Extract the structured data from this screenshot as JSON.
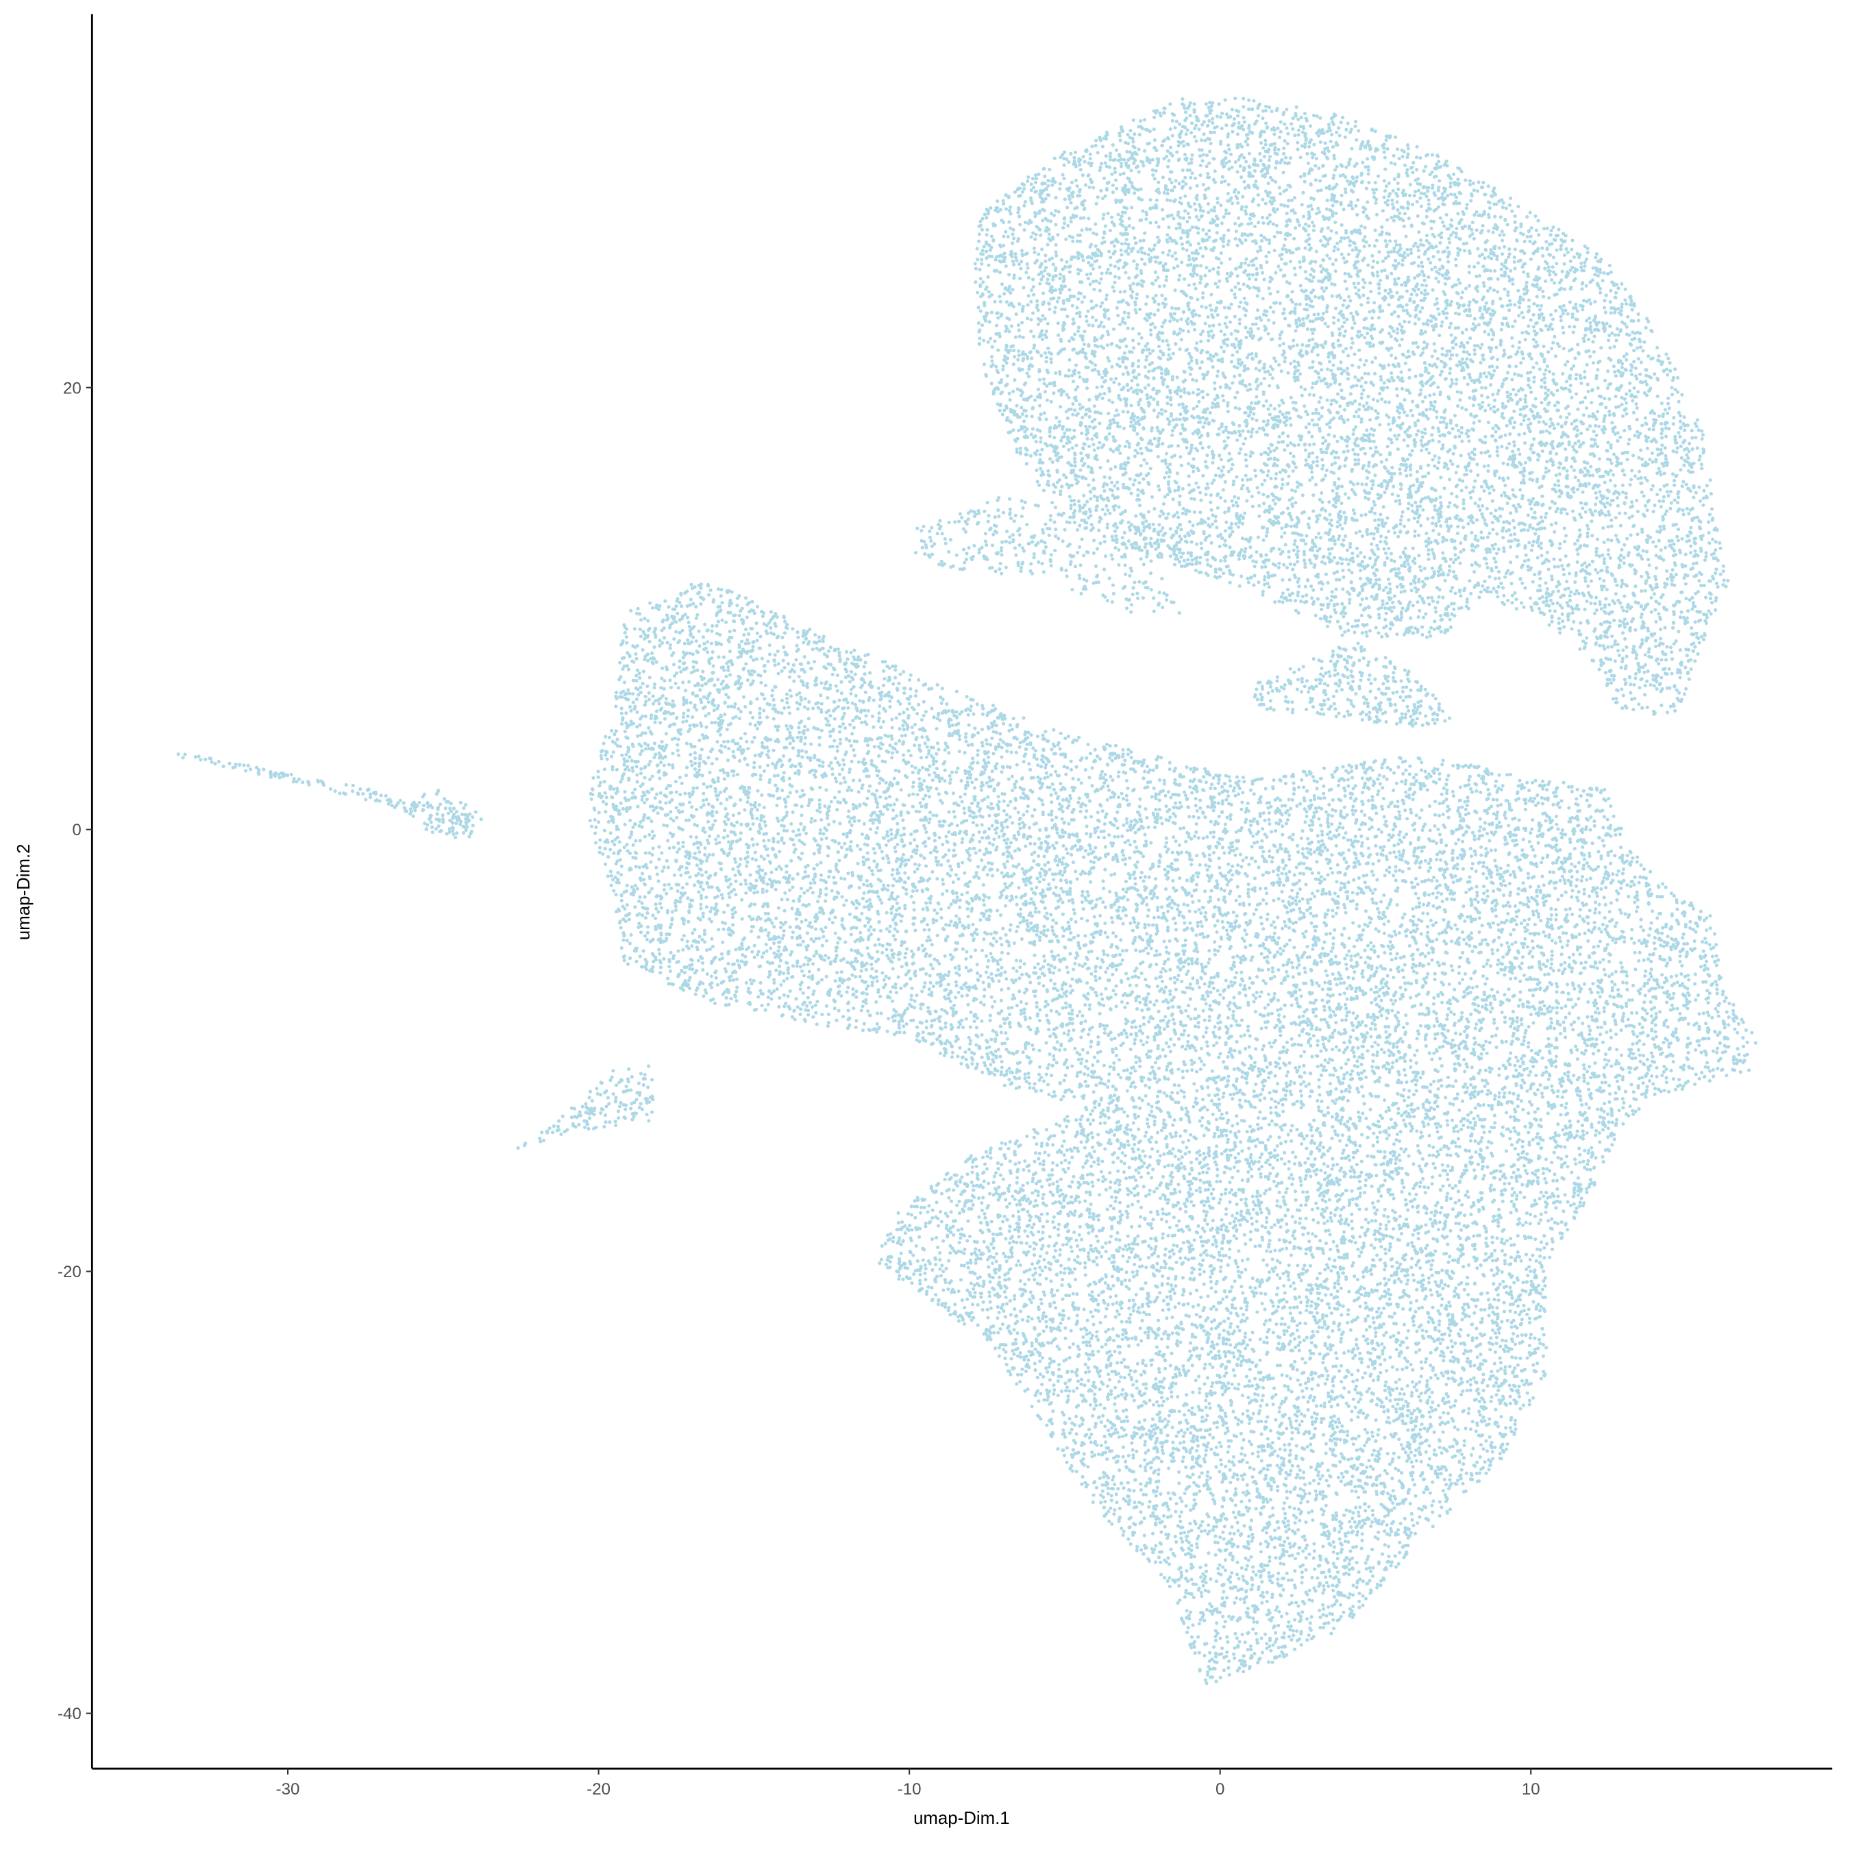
{
  "chart_data": {
    "type": "scatter",
    "title": "",
    "xlabel": "umap-Dim.1",
    "ylabel": "umap-Dim.2",
    "xlim": [
      -36.3,
      19.7
    ],
    "ylim": [
      -42.5,
      36.9
    ],
    "xticks": [
      "-30",
      "-20",
      "-10",
      "0",
      "10"
    ],
    "yticks": [
      "-40",
      "-20",
      "0",
      "20"
    ],
    "grid": false,
    "legend": "none",
    "point_color": "#ADD8E6",
    "series": [
      {
        "regions": [
          {
            "weight": 1.0,
            "polygon": [
              [
                -7.8,
                27.9
              ],
              [
                -5.1,
                30.6
              ],
              [
                -1.3,
                33.1
              ],
              [
                1.0,
                33.1
              ],
              [
                3.7,
                32.4
              ],
              [
                7.1,
                30.6
              ],
              [
                10.1,
                27.9
              ],
              [
                12.4,
                25.8
              ],
              [
                14.3,
                22.0
              ],
              [
                15.6,
                17.8
              ],
              [
                16.0,
                13.5
              ],
              [
                16.4,
                11.4
              ],
              [
                15.6,
                8.7
              ],
              [
                14.7,
                5.0
              ],
              [
                12.8,
                5.5
              ],
              [
                12.0,
                7.6
              ],
              [
                10.1,
                9.8
              ],
              [
                8.6,
                10.3
              ],
              [
                7.1,
                8.7
              ],
              [
                4.0,
                8.7
              ],
              [
                1.0,
                10.8
              ],
              [
                -1.3,
                11.9
              ],
              [
                -5.1,
                14.0
              ],
              [
                -6.6,
                17.2
              ],
              [
                -7.8,
                21.5
              ],
              [
                -7.9,
                25.8
              ]
            ]
          },
          {
            "weight": 0.6,
            "polygon": [
              [
                -10.0,
                13.5
              ],
              [
                -7.0,
                15.1
              ],
              [
                -2.8,
                14.0
              ],
              [
                -1.3,
                9.8
              ],
              [
                -2.8,
                9.8
              ],
              [
                -5.9,
                11.4
              ],
              [
                -9.7,
                11.9
              ]
            ]
          },
          {
            "weight": 1.0,
            "polygon": [
              [
                -19.2,
                9.8
              ],
              [
                -16.5,
                11.4
              ],
              [
                -12.7,
                8.7
              ],
              [
                -5.1,
                4.4
              ],
              [
                1.0,
                2.3
              ],
              [
                6.3,
                3.4
              ],
              [
                12.4,
                1.8
              ],
              [
                13.2,
                -0.9
              ],
              [
                14.7,
                -3.0
              ],
              [
                15.8,
                -3.6
              ],
              [
                16.2,
                -7.3
              ],
              [
                17.3,
                -9.4
              ],
              [
                17.0,
                -11.0
              ],
              [
                13.9,
                -12.1
              ],
              [
                12.8,
                -13.7
              ],
              [
                12.0,
                -16.4
              ],
              [
                10.5,
                -19.6
              ],
              [
                10.5,
                -24.9
              ],
              [
                9.0,
                -28.6
              ],
              [
                6.3,
                -32.4
              ],
              [
                4.0,
                -36.1
              ],
              [
                1.0,
                -38.2
              ],
              [
                -0.5,
                -38.8
              ],
              [
                -1.7,
                -34.0
              ],
              [
                -4.0,
                -30.8
              ],
              [
                -5.9,
                -26.5
              ],
              [
                -7.4,
                -23.3
              ],
              [
                -10.0,
                -20.6
              ],
              [
                -11.2,
                -19.8
              ],
              [
                -10.4,
                -17.4
              ],
              [
                -8.1,
                -14.8
              ],
              [
                -6.2,
                -13.7
              ],
              [
                -4.3,
                -12.6
              ],
              [
                -7.0,
                -11.6
              ],
              [
                -10.0,
                -9.4
              ],
              [
                -12.7,
                -8.9
              ],
              [
                -16.5,
                -7.8
              ],
              [
                -19.2,
                -6.2
              ],
              [
                -19.5,
                -3.0
              ],
              [
                -20.3,
                0.2
              ],
              [
                -20.3,
                1.8
              ],
              [
                -19.5,
                5.5
              ]
            ]
          },
          {
            "weight": 1.0,
            "polygon": [
              [
                1.0,
                6.6
              ],
              [
                4.4,
                8.7
              ],
              [
                6.3,
                7.1
              ],
              [
                7.8,
                4.4
              ],
              [
                1.0,
                5.5
              ]
            ]
          },
          {
            "weight": 1.5,
            "polygon": [
              [
                -33.9,
                3.6
              ],
              [
                -27.9,
                2.0
              ],
              [
                -24.1,
                0.7
              ],
              [
                -24.1,
                -0.1
              ],
              [
                -27.9,
                1.5
              ],
              [
                -33.9,
                3.4
              ]
            ]
          },
          {
            "weight": 1.2,
            "polygon": [
              [
                -26.4,
                1.2
              ],
              [
                -25.2,
                1.8
              ],
              [
                -23.7,
                0.7
              ],
              [
                -24.1,
                -0.5
              ],
              [
                -25.6,
                -0.1
              ]
            ]
          },
          {
            "weight": 1.0,
            "polygon": [
              [
                -23.2,
                -15.0
              ],
              [
                -21.4,
                -13.2
              ],
              [
                -19.5,
                -10.8
              ],
              [
                -18.1,
                -10.5
              ],
              [
                -18.3,
                -13.2
              ],
              [
                -21.0,
                -13.7
              ]
            ]
          }
        ]
      }
    ]
  }
}
